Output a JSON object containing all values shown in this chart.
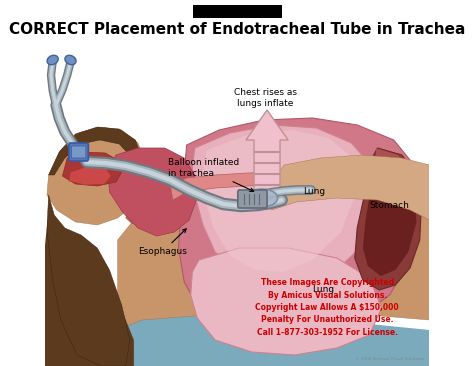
{
  "title": "CORRECT Placement of Endotracheal Tube in Trachea",
  "label_balloon": "Balloon inflated\nin trachea",
  "label_esophagus": "Esophagus",
  "label_lung1": "Lung",
  "label_lung2": "Lung",
  "label_stomach": "Stomach",
  "label_chest": "Chest rises as\nlungs inflate",
  "copyright_lines": [
    "These Images Are Copyrighted",
    "By Amicus Visual Solutions.",
    "Copyright Law Allows A $150,000",
    "Penalty For Unauthorized Use.",
    "Call 1-877-303-1952 For License."
  ],
  "bg_color": "#ffffff",
  "skin_light": "#D4A882",
  "skin_mid": "#C8956A",
  "skin_dark": "#A07050",
  "hair_color": "#5C3A1E",
  "hair_dark": "#3A2010",
  "throat_color": "#C06070",
  "lung_pink": "#E8B0BC",
  "lung_dark": "#D08090",
  "chest_bg": "#CC8090",
  "stomach_outer": "#8B3A3A",
  "stomach_inner": "#6B2020",
  "tube_outer": "#8090A0",
  "tube_inner": "#C8D0D8",
  "arrow_fill": "#F0C0CC",
  "arrow_stripe": "#D09090",
  "teal_bg": "#7AAABB",
  "title_fontsize": 11,
  "label_fontsize": 6.5,
  "copyright_fontsize": 5.5,
  "copyright_color": "#CC0000",
  "watermark_color": "#888888"
}
